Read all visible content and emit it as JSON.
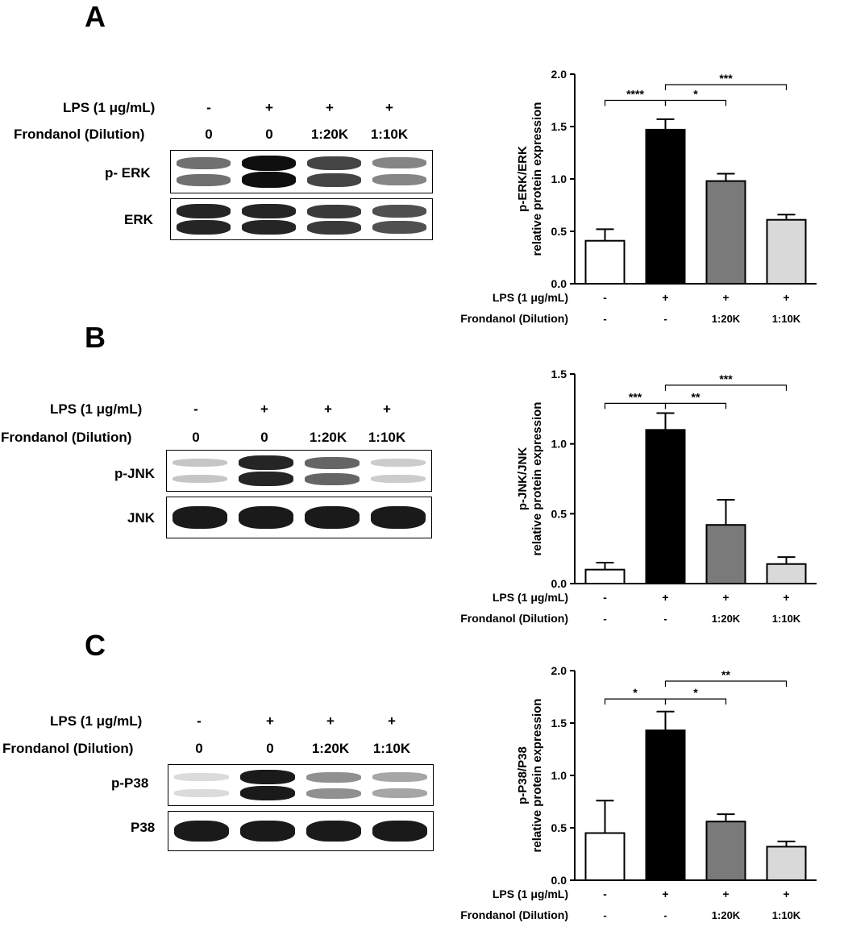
{
  "panels": [
    {
      "letter": "A",
      "blot": {
        "lps_label": "LPS (1 μg/mL)",
        "frond_label": "Frondanol (Dilution)",
        "lps_lanes": [
          "-",
          "+",
          "+",
          "+"
        ],
        "frond_lanes": [
          "0",
          "0",
          "1:20K",
          "1:10K"
        ],
        "rows": [
          {
            "label": "p- ERK",
            "intensity": [
              0.55,
              1.0,
              0.75,
              0.45
            ]
          },
          {
            "label": "ERK",
            "intensity": [
              0.9,
              0.9,
              0.8,
              0.7
            ]
          }
        ]
      }
    },
    {
      "letter": "B",
      "blot": {
        "lps_label": "LPS (1 μg/mL)",
        "frond_label": "Frondanol (Dilution)",
        "lps_lanes": [
          "-",
          "+",
          "+",
          "+"
        ],
        "frond_lanes": [
          "0",
          "0",
          "1:20K",
          "1:10K"
        ],
        "rows": [
          {
            "label": "p-JNK",
            "intensity": [
              0.15,
              0.9,
              0.6,
              0.12
            ]
          },
          {
            "label": "JNK",
            "intensity": [
              0.95,
              0.95,
              0.95,
              0.95
            ]
          }
        ]
      }
    },
    {
      "letter": "C",
      "blot": {
        "lps_label": "LPS (1 μg/mL)",
        "frond_label": "Frondanol (Dilution)",
        "lps_lanes": [
          "-",
          "+",
          "+",
          "+"
        ],
        "frond_lanes": [
          "0",
          "0",
          "1:20K",
          "1:10K"
        ],
        "rows": [
          {
            "label": "p-P38",
            "intensity": [
              0.05,
              0.95,
              0.4,
              0.3
            ]
          },
          {
            "label": "P38",
            "intensity": [
              0.95,
              0.95,
              0.95,
              0.95
            ]
          }
        ]
      }
    }
  ],
  "chart_data": [
    {
      "type": "bar",
      "ylabel_line1": "p-ERK/ERK",
      "ylabel_line2": "relative protein expression",
      "ylim": [
        0,
        2.0
      ],
      "yticks": [
        "0.0",
        "0.5",
        "1.0",
        "1.5",
        "2.0"
      ],
      "ytick_values": [
        0,
        0.5,
        1.0,
        1.5,
        2.0
      ],
      "values": [
        0.41,
        1.47,
        0.98,
        0.61
      ],
      "errors": [
        0.11,
        0.1,
        0.07,
        0.05
      ],
      "colors": [
        "#ffffff",
        "#000000",
        "#7a7a7a",
        "#d9d9d9"
      ],
      "x_lps_label": "LPS (1 μg/mL)",
      "x_frond_label": "Frondanol (Dilution)",
      "x_lps": [
        "-",
        "+",
        "+",
        "+"
      ],
      "x_frond": [
        "-",
        "-",
        "1:20K",
        "1:10K"
      ],
      "significance": [
        {
          "from": 0,
          "to": 1,
          "label": "****",
          "level": 1.75
        },
        {
          "from": 1,
          "to": 2,
          "label": "*",
          "level": 1.75
        },
        {
          "from": 1,
          "to": 3,
          "label": "***",
          "level": 1.9
        }
      ]
    },
    {
      "type": "bar",
      "ylabel_line1": "p-JNK/JNK",
      "ylabel_line2": "relative protein expression",
      "ylim": [
        0,
        1.5
      ],
      "yticks": [
        "0.0",
        "0.5",
        "1.0",
        "1.5"
      ],
      "ytick_values": [
        0,
        0.5,
        1.0,
        1.5
      ],
      "values": [
        0.1,
        1.1,
        0.42,
        0.14
      ],
      "errors": [
        0.05,
        0.12,
        0.18,
        0.05
      ],
      "colors": [
        "#ffffff",
        "#000000",
        "#7a7a7a",
        "#d9d9d9"
      ],
      "x_lps_label": "LPS (1 μg/mL)",
      "x_frond_label": "Frondanol (Dilution)",
      "x_lps": [
        "-",
        "+",
        "+",
        "+"
      ],
      "x_frond": [
        "-",
        "-",
        "1:20K",
        "1:10K"
      ],
      "significance": [
        {
          "from": 0,
          "to": 1,
          "label": "***",
          "level": 1.29
        },
        {
          "from": 1,
          "to": 2,
          "label": "**",
          "level": 1.29
        },
        {
          "from": 1,
          "to": 3,
          "label": "***",
          "level": 1.42
        }
      ]
    },
    {
      "type": "bar",
      "ylabel_line1": "p-P38/P38",
      "ylabel_line2": "relative protein expression",
      "ylim": [
        0,
        2.0
      ],
      "yticks": [
        "0.0",
        "0.5",
        "1.0",
        "1.5",
        "2.0"
      ],
      "ytick_values": [
        0,
        0.5,
        1.0,
        1.5,
        2.0
      ],
      "values": [
        0.45,
        1.43,
        0.56,
        0.32
      ],
      "errors": [
        0.31,
        0.18,
        0.07,
        0.05
      ],
      "colors": [
        "#ffffff",
        "#000000",
        "#7a7a7a",
        "#d9d9d9"
      ],
      "x_lps_label": "LPS (1 μg/mL)",
      "x_frond_label": "Frondanol (Dilution)",
      "x_lps": [
        "-",
        "+",
        "+",
        "+"
      ],
      "x_frond": [
        "-",
        "-",
        "1:20K",
        "1:10K"
      ],
      "significance": [
        {
          "from": 0,
          "to": 1,
          "label": "*",
          "level": 1.73
        },
        {
          "from": 1,
          "to": 2,
          "label": "*",
          "level": 1.73
        },
        {
          "from": 1,
          "to": 3,
          "label": "**",
          "level": 1.9
        }
      ]
    }
  ]
}
